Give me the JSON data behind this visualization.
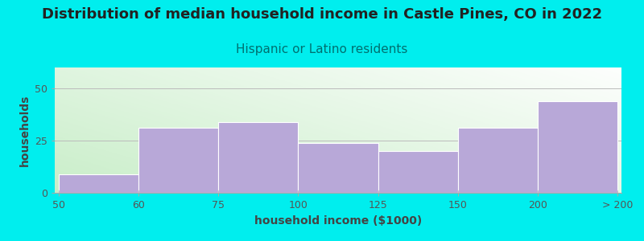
{
  "title": "Distribution of median household income in Castle Pines, CO in 2022",
  "subtitle": "Hispanic or Latino residents",
  "xlabel": "household income ($1000)",
  "ylabel": "households",
  "title_fontsize": 13,
  "subtitle_fontsize": 11,
  "label_fontsize": 10,
  "tick_fontsize": 9,
  "background_outer": "#00EEEE",
  "bar_color": "#b8a8d8",
  "bar_edge_color": "#b8a8d8",
  "bar_heights": [
    9,
    31,
    34,
    24,
    20,
    31,
    44
  ],
  "xlabels": [
    "50",
    "60",
    "75",
    "100",
    "125",
    "150",
    "200",
    "> 200"
  ],
  "yticks": [
    0,
    25,
    50
  ],
  "ylim": [
    0,
    60
  ],
  "grid_color": "#bbbbbb",
  "title_color": "#222222",
  "subtitle_color": "#007070",
  "axis_label_color": "#444444",
  "tick_color": "#555555",
  "plot_bg_left": "#b8e8c0",
  "plot_bg_right": "#ffffff"
}
